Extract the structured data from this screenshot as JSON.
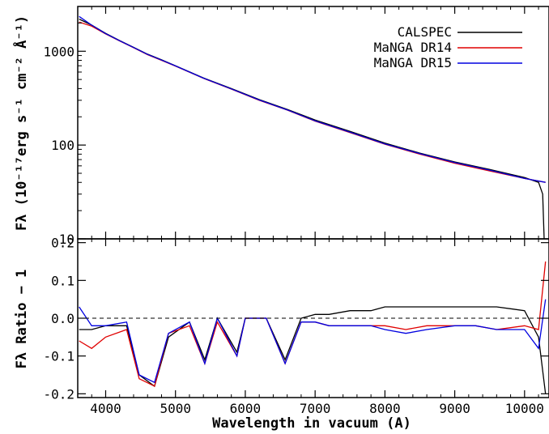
{
  "chart_data": [
    {
      "type": "line",
      "panel": "top",
      "ylabel": "Fλ (10⁻¹⁷erg s⁻¹ cm⁻² Å⁻¹)",
      "yscale": "log",
      "xlim": [
        3600,
        10350
      ],
      "ylim": [
        10,
        3000
      ],
      "y_ticks": [
        10,
        100,
        1000
      ],
      "y_tick_labels": [
        "10",
        "100",
        "1000"
      ],
      "legend_position": "top-right",
      "colors": {
        "CALSPEC": "#000000",
        "MaNGA DR14": "#e00000",
        "MaNGA DR15": "#0000e0"
      },
      "series": [
        {
          "name": "CALSPEC",
          "color": "#000000",
          "x": [
            3620,
            3800,
            4000,
            4200,
            4400,
            4600,
            4800,
            5000,
            5400,
            5800,
            6200,
            6600,
            7000,
            7500,
            8000,
            8500,
            9000,
            9500,
            10000,
            10200,
            10260,
            10280
          ],
          "y": [
            2200,
            1900,
            1550,
            1300,
            1100,
            930,
            810,
            700,
            520,
            400,
            305,
            240,
            185,
            140,
            105,
            82,
            66,
            55,
            45,
            40,
            30,
            10
          ]
        },
        {
          "name": "MaNGA DR14",
          "color": "#e00000",
          "x": [
            3620,
            3800,
            4000,
            4200,
            4400,
            4600,
            4800,
            5000,
            5400,
            5800,
            6200,
            6600,
            7000,
            7500,
            8000,
            8500,
            9000,
            9500,
            10000,
            10300
          ],
          "y": [
            2050,
            1850,
            1530,
            1290,
            1090,
            920,
            800,
            695,
            515,
            395,
            300,
            236,
            180,
            136,
            102,
            80,
            64,
            53,
            44,
            40
          ]
        },
        {
          "name": "MaNGA DR15",
          "color": "#0000e0",
          "x": [
            3620,
            3800,
            4000,
            4200,
            4400,
            4600,
            4800,
            5000,
            5400,
            5800,
            6200,
            6600,
            7000,
            7500,
            8000,
            8500,
            9000,
            9500,
            10000,
            10300
          ],
          "y": [
            2350,
            1900,
            1540,
            1295,
            1095,
            925,
            805,
            697,
            517,
            397,
            302,
            237,
            181,
            137,
            103,
            81,
            65,
            54,
            44,
            40
          ]
        }
      ]
    },
    {
      "type": "line",
      "panel": "bottom",
      "xlabel": "Wavelength in vacuum (A)",
      "ylabel": "Fλ Ratio − 1",
      "xlim": [
        3600,
        10350
      ],
      "ylim": [
        -0.21,
        0.21
      ],
      "x_ticks": [
        4000,
        5000,
        6000,
        7000,
        8000,
        9000,
        10000
      ],
      "x_tick_labels": [
        "4000",
        "5000",
        "6000",
        "7000",
        "8000",
        "9000",
        "10000"
      ],
      "y_ticks": [
        -0.2,
        -0.1,
        0.0,
        0.1,
        0.2
      ],
      "y_tick_labels": [
        "-0.2",
        "-0.1",
        "0.0",
        "0.1",
        "0.2"
      ],
      "reference_line": 0.0,
      "series": [
        {
          "name": "CALSPEC",
          "color": "#000000",
          "x": [
            3620,
            3800,
            4000,
            4300,
            4480,
            4700,
            4900,
            5200,
            5420,
            5600,
            5880,
            6000,
            6300,
            6570,
            6800,
            7000,
            7200,
            7500,
            7800,
            8000,
            8300,
            8600,
            9000,
            9300,
            9600,
            10000,
            10200,
            10300
          ],
          "y": [
            -0.03,
            -0.03,
            -0.02,
            -0.02,
            -0.15,
            -0.18,
            -0.05,
            -0.01,
            -0.11,
            0.0,
            -0.09,
            0.0,
            0.0,
            -0.11,
            0.0,
            0.01,
            0.01,
            0.02,
            0.02,
            0.03,
            0.03,
            0.03,
            0.03,
            0.03,
            0.03,
            0.02,
            -0.05,
            -0.2
          ]
        },
        {
          "name": "MaNGA DR14",
          "color": "#e00000",
          "x": [
            3620,
            3800,
            4000,
            4300,
            4480,
            4700,
            4900,
            5200,
            5420,
            5600,
            5880,
            6000,
            6300,
            6570,
            6800,
            7000,
            7200,
            7500,
            7800,
            8000,
            8300,
            8600,
            9000,
            9300,
            9600,
            10000,
            10200,
            10300
          ],
          "y": [
            -0.06,
            -0.08,
            -0.05,
            -0.03,
            -0.16,
            -0.18,
            -0.04,
            -0.02,
            -0.12,
            -0.01,
            -0.1,
            0.0,
            0.0,
            -0.12,
            -0.01,
            -0.01,
            -0.02,
            -0.02,
            -0.02,
            -0.02,
            -0.03,
            -0.02,
            -0.02,
            -0.02,
            -0.03,
            -0.02,
            -0.03,
            0.15
          ]
        },
        {
          "name": "MaNGA DR15",
          "color": "#0000e0",
          "x": [
            3620,
            3800,
            4000,
            4300,
            4480,
            4700,
            4900,
            5200,
            5420,
            5600,
            5880,
            6000,
            6300,
            6570,
            6800,
            7000,
            7200,
            7500,
            7800,
            8000,
            8300,
            8600,
            9000,
            9300,
            9600,
            10000,
            10200,
            10300
          ],
          "y": [
            0.03,
            -0.02,
            -0.02,
            -0.01,
            -0.15,
            -0.17,
            -0.04,
            -0.01,
            -0.12,
            0.0,
            -0.1,
            0.0,
            0.0,
            -0.12,
            -0.01,
            -0.01,
            -0.02,
            -0.02,
            -0.02,
            -0.03,
            -0.04,
            -0.03,
            -0.02,
            -0.02,
            -0.03,
            -0.03,
            -0.08,
            0.05
          ]
        }
      ]
    }
  ]
}
